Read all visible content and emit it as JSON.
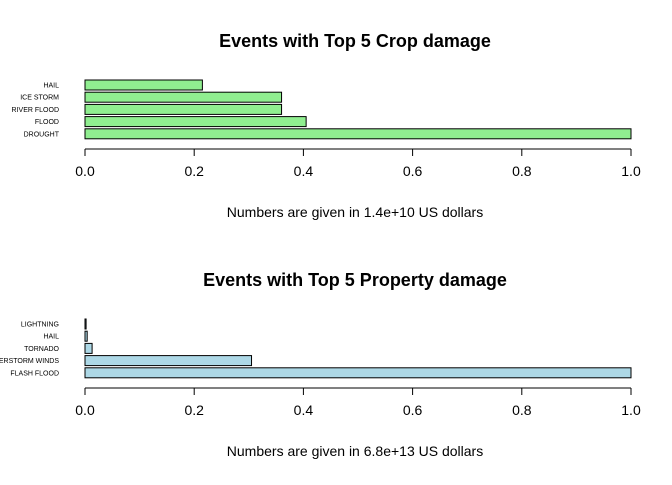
{
  "chart_data": [
    {
      "type": "bar",
      "orientation": "horizontal",
      "title": "Events with Top 5 Crop damage",
      "xlabel": "Numbers are given in 1.4e+10 US dollars",
      "categories": [
        "DROUGHT",
        "FLOOD",
        "RIVER FLOOD",
        "ICE STORM",
        "HAIL"
      ],
      "values": [
        1.0,
        0.405,
        0.36,
        0.36,
        0.215
      ],
      "xlim": [
        0,
        1
      ],
      "xticks": [
        "0.0",
        "0.2",
        "0.4",
        "0.6",
        "0.8",
        "1.0"
      ],
      "bar_color": "#90ee90"
    },
    {
      "type": "bar",
      "orientation": "horizontal",
      "title": "Events with Top 5 Property damage",
      "xlabel": "Numbers are given in 6.8e+13 US dollars",
      "categories": [
        "FLASH FLOOD",
        "THUNDERSTORM WINDS",
        "TORNADO",
        "HAIL",
        "LIGHTNING"
      ],
      "values": [
        1.0,
        0.305,
        0.013,
        0.004,
        0.002
      ],
      "xlim": [
        0,
        1
      ],
      "xticks": [
        "0.0",
        "0.2",
        "0.4",
        "0.6",
        "0.8",
        "1.0"
      ],
      "bar_color": "#add8e6"
    }
  ]
}
